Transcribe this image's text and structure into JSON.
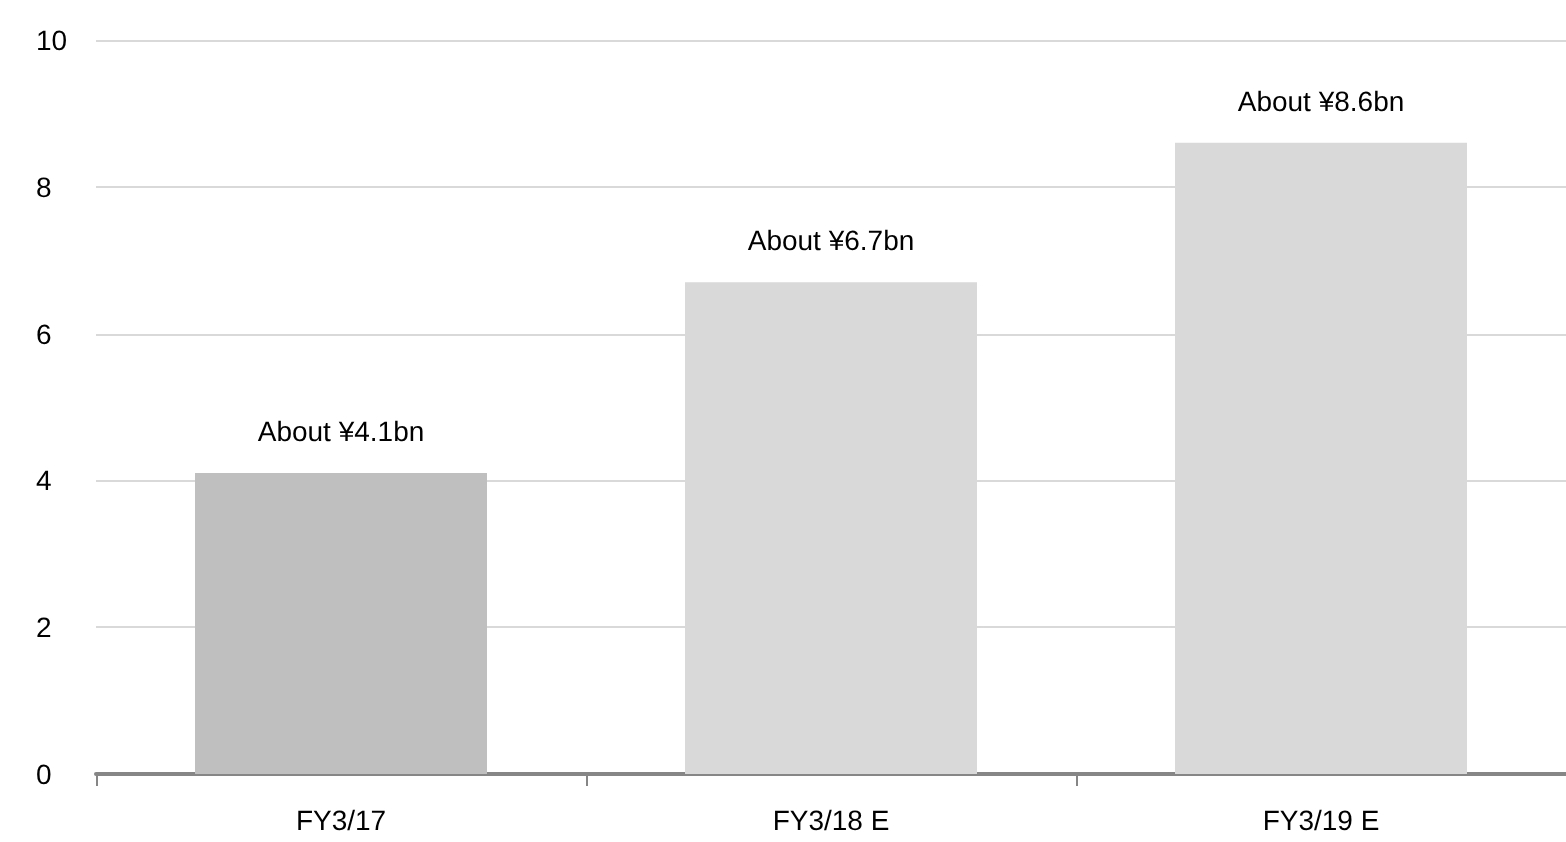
{
  "chart_data": {
    "type": "bar",
    "categories": [
      "FY3/17",
      "FY3/18 E",
      "FY3/19 E"
    ],
    "values": [
      4.1,
      6.7,
      8.6
    ],
    "colors": [
      "#bfbfbf",
      "#d9d9d9",
      "#d9d9d9"
    ],
    "value_labels": [
      "About ¥4.1bn",
      "About ¥6.7bn",
      "About ¥8.6bn"
    ],
    "ylim": [
      0,
      10
    ],
    "yticks": [
      0,
      2,
      4,
      6,
      8,
      10
    ],
    "grid": "y"
  }
}
